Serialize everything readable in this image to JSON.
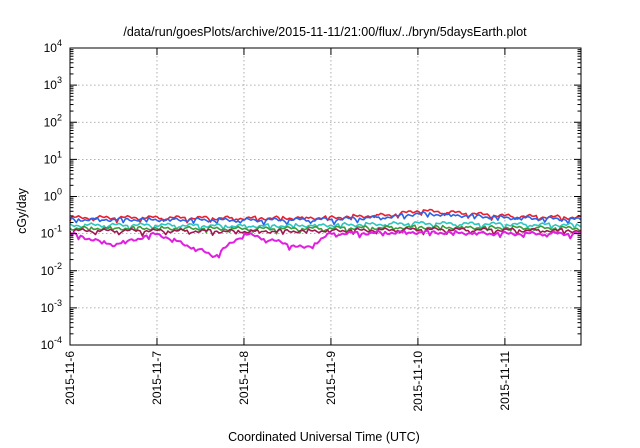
{
  "chart_data": {
    "type": "line",
    "title": "/data/run/goesPlots/archive/2015-11-11/21:00/flux/../bryn/5daysEarth.plot",
    "xlabel": "Coordinated Universal Time (UTC)",
    "ylabel": "cGy/day",
    "y_scale": "log",
    "ylim": [
      0.0001,
      10000
    ],
    "y_ticks": [
      {
        "base": "10",
        "exp": "-4",
        "value": 0.0001
      },
      {
        "base": "10",
        "exp": "-3",
        "value": 0.001
      },
      {
        "base": "10",
        "exp": "-2",
        "value": 0.01
      },
      {
        "base": "10",
        "exp": "-1",
        "value": 0.1
      },
      {
        "base": "10",
        "exp": "0",
        "value": 1
      },
      {
        "base": "10",
        "exp": "1",
        "value": 10
      },
      {
        "base": "10",
        "exp": "2",
        "value": 100
      },
      {
        "base": "10",
        "exp": "3",
        "value": 1000
      },
      {
        "base": "10",
        "exp": "4",
        "value": 10000
      }
    ],
    "xlim": [
      "2015-11-06",
      "2015-11-11T21:00"
    ],
    "x_ticks": [
      "2015-11-6",
      "2015-11-7",
      "2015-11-8",
      "2015-11-9",
      "2015-11-10",
      "2015-11-11"
    ],
    "grid": true,
    "series": [
      {
        "color": "#e8202e",
        "x": [
          "2015-11-06",
          "2015-11-07",
          "2015-11-08",
          "2015-11-09",
          "2015-11-09T18:00",
          "2015-11-10",
          "2015-11-10T12:00",
          "2015-11-11",
          "2015-11-11T21:00"
        ],
        "values": [
          0.27,
          0.27,
          0.26,
          0.27,
          0.33,
          0.42,
          0.36,
          0.3,
          0.27
        ]
      },
      {
        "color": "#2a63e6",
        "x": [
          "2015-11-06",
          "2015-11-07",
          "2015-11-08",
          "2015-11-09",
          "2015-11-09T18:00",
          "2015-11-10",
          "2015-11-10T12:00",
          "2015-11-11",
          "2015-11-11T21:00"
        ],
        "values": [
          0.24,
          0.24,
          0.23,
          0.24,
          0.29,
          0.35,
          0.31,
          0.27,
          0.24
        ]
      },
      {
        "color": "#2cc6c0",
        "x": [
          "2015-11-06",
          "2015-11-07",
          "2015-11-08",
          "2015-11-09",
          "2015-11-10",
          "2015-11-11",
          "2015-11-11T21:00"
        ],
        "values": [
          0.17,
          0.17,
          0.16,
          0.17,
          0.19,
          0.18,
          0.17
        ]
      },
      {
        "color": "#3a9c3a",
        "x": [
          "2015-11-06",
          "2015-11-07",
          "2015-11-08",
          "2015-11-09",
          "2015-11-10",
          "2015-11-11",
          "2015-11-11T21:00"
        ],
        "values": [
          0.14,
          0.14,
          0.135,
          0.14,
          0.15,
          0.145,
          0.14
        ]
      },
      {
        "color": "#a01850",
        "x": [
          "2015-11-06",
          "2015-11-07",
          "2015-11-08",
          "2015-11-09",
          "2015-11-10",
          "2015-11-11",
          "2015-11-11T21:00"
        ],
        "values": [
          0.12,
          0.12,
          0.115,
          0.12,
          0.13,
          0.125,
          0.12
        ]
      },
      {
        "color": "#e020e0",
        "x": [
          "2015-11-06",
          "2015-11-06T12:00",
          "2015-11-07",
          "2015-11-07T16:00",
          "2015-11-08",
          "2015-11-08T17:00",
          "2015-11-09",
          "2015-11-10",
          "2015-11-11",
          "2015-11-11T21:00"
        ],
        "values": [
          0.1,
          0.05,
          0.1,
          0.025,
          0.1,
          0.04,
          0.1,
          0.11,
          0.1,
          0.1
        ]
      }
    ]
  }
}
